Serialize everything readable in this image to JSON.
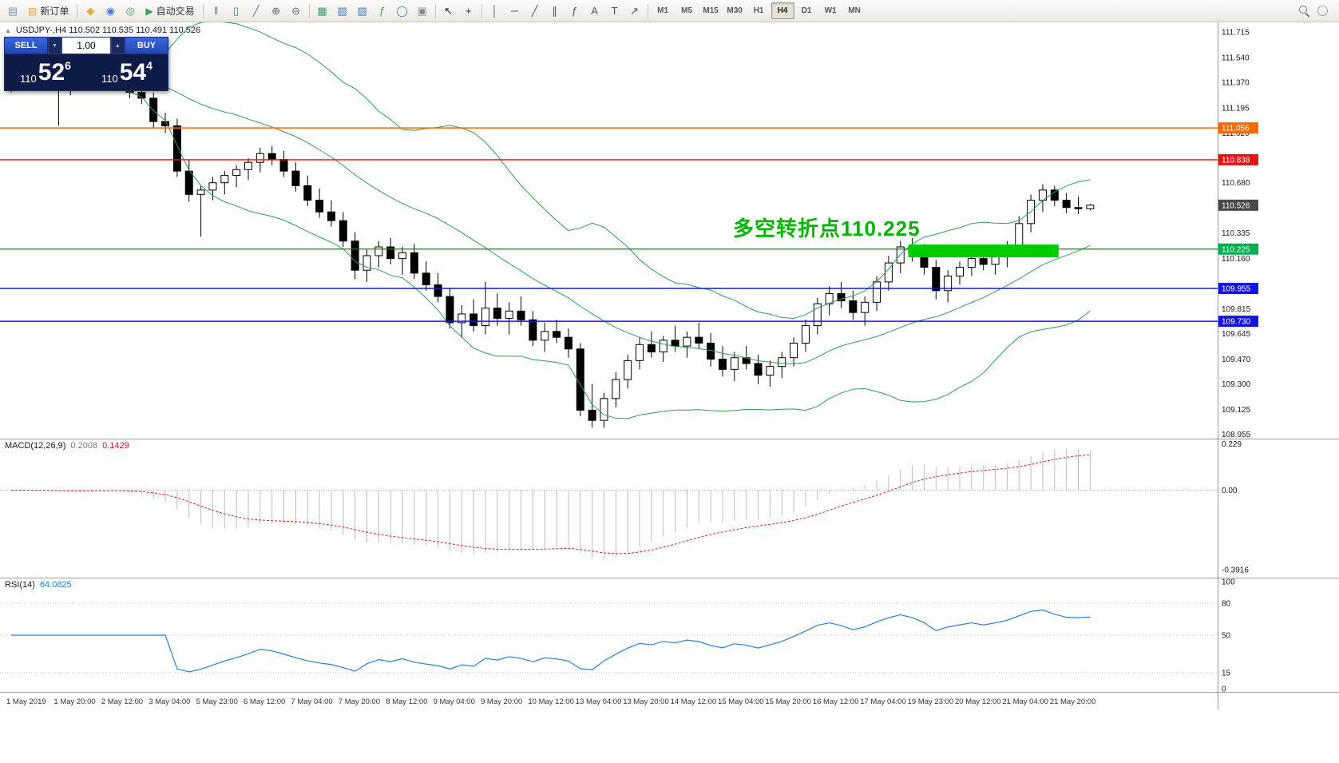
{
  "colors": {
    "bollinger": "#2f9e4f",
    "macd_hist": "#bcbcbc",
    "macd_signal": "#e02020",
    "rsi_line": "#2a7fdd",
    "annotation_green": "#00b400",
    "highlight_green": "#00cc00"
  },
  "toolbar": {
    "items": [
      {
        "t": "icon",
        "name": "chart-window-icon",
        "g": "▤",
        "c": "#8a97a8"
      },
      {
        "t": "btn",
        "name": "new-order-button",
        "g": "▤",
        "c": "#d8aa3c",
        "label": "新订单"
      },
      {
        "t": "sep"
      },
      {
        "t": "icon",
        "name": "market-watch-icon",
        "g": "◆",
        "c": "#e0b040"
      },
      {
        "t": "icon",
        "name": "data-window-icon",
        "g": "◉",
        "c": "#4a7ac8"
      },
      {
        "t": "icon",
        "name": "navigator-icon",
        "g": "◎",
        "c": "#3f9e5f"
      },
      {
        "t": "btn",
        "name": "auto-trading-button",
        "g": "▶",
        "c": "#2ea44f",
        "label": "自动交易"
      },
      {
        "t": "sep"
      },
      {
        "t": "icon",
        "name": "bar-chart-icon",
        "g": "‖",
        "c": "#4a7ac8"
      },
      {
        "t": "icon",
        "name": "candlestick-chart-icon",
        "g": "▯",
        "c": "#4a7ac8"
      },
      {
        "t": "icon",
        "name": "line-chart-icon",
        "g": "╱",
        "c": "#4a7ac8"
      },
      {
        "t": "icon",
        "name": "zoom-in-icon",
        "g": "⊕",
        "c": "#5a6a7a"
      },
      {
        "t": "icon",
        "name": "zoom-out-icon",
        "g": "⊖",
        "c": "#5a6a7a"
      },
      {
        "t": "sep"
      },
      {
        "t": "icon",
        "name": "tile-windows-icon",
        "g": "▦",
        "c": "#3f9e5f"
      },
      {
        "t": "icon",
        "name": "cascade-windows-icon",
        "g": "▧",
        "c": "#4a7ac8"
      },
      {
        "t": "icon",
        "name": "new-chart-icon",
        "g": "▨",
        "c": "#4a7ac8"
      },
      {
        "t": "icon",
        "name": "indicators-icon",
        "g": "ƒ",
        "c": "#2ea44f"
      },
      {
        "t": "icon",
        "name": "period-icon",
        "g": "◯",
        "c": "#4a7ac8"
      },
      {
        "t": "icon",
        "name": "template-icon",
        "g": "▣",
        "c": "#8a8a8a"
      },
      {
        "t": "sep"
      },
      {
        "t": "icon",
        "name": "cursor-icon",
        "g": "↖",
        "c": "#222222"
      },
      {
        "t": "icon",
        "name": "crosshair-icon",
        "g": "+",
        "c": "#222222"
      },
      {
        "t": "sep"
      },
      {
        "t": "icon",
        "name": "vertical-line-icon",
        "g": "│",
        "c": "#555555"
      },
      {
        "t": "icon",
        "name": "horizontal-line-icon",
        "g": "─",
        "c": "#555555"
      },
      {
        "t": "icon",
        "name": "trendline-icon",
        "g": "╱",
        "c": "#555555"
      },
      {
        "t": "icon",
        "name": "channel-icon",
        "g": "∥",
        "c": "#555555"
      },
      {
        "t": "icon",
        "name": "fibonacci-icon",
        "g": "ƒ",
        "c": "#555555"
      },
      {
        "t": "icon",
        "name": "text-icon",
        "g": "A",
        "c": "#555555"
      },
      {
        "t": "icon",
        "name": "label-icon",
        "g": "T",
        "c": "#555555"
      },
      {
        "t": "icon",
        "name": "arrows-icon",
        "g": "↗",
        "c": "#555555"
      },
      {
        "t": "sep"
      },
      {
        "t": "tf"
      }
    ],
    "timeframes": {
      "options": [
        "M1",
        "M5",
        "M15",
        "M30",
        "H1",
        "H4",
        "D1",
        "W1",
        "MN"
      ],
      "active": "H4"
    },
    "right_items": [
      {
        "name": "search-icon",
        "shape": "magnifier"
      },
      {
        "name": "help-icon",
        "shape": "circle"
      }
    ]
  },
  "trade_panel": {
    "sell_label": "SELL",
    "buy_label": "BUY",
    "volume": "1.00",
    "spin_down_glyph": "▼",
    "spin_up_glyph": "▲",
    "sell_price": {
      "prefix": "110",
      "big": "52",
      "sup": "6"
    },
    "buy_price": {
      "prefix": "110",
      "big": "54",
      "sup": "4"
    }
  },
  "chart": {
    "collapse_glyph": "▲",
    "symbol_info": "USDJPY-,H4  110.502 110.535 110.491 110.526",
    "annotation": "多空转折点110.225",
    "y_ticks": [
      "111.715",
      "111.540",
      "111.370",
      "111.195",
      "111.020",
      "110.680",
      "110.335",
      "110.160",
      "109.815",
      "109.645",
      "109.470",
      "109.300",
      "109.125",
      "108.955"
    ],
    "price_tags": [
      {
        "label": "111.056",
        "price": 111.056,
        "color": "#ff6a00"
      },
      {
        "label": "110.838",
        "price": 110.838,
        "color": "#e81212"
      },
      {
        "label": "110.526",
        "price": 110.526,
        "color": "#4a4a4a"
      },
      {
        "label": "110.225",
        "price": 110.225,
        "color": "#00b050"
      },
      {
        "label": "109.955",
        "price": 109.955,
        "color": "#1414e0"
      },
      {
        "label": "109.730",
        "price": 109.73,
        "color": "#1414e0"
      }
    ],
    "hlines": [
      {
        "price": 111.056,
        "color": "#ff6a00",
        "width": 1.4
      },
      {
        "price": 110.838,
        "color": "#e81212",
        "width": 1.4
      },
      {
        "price": 110.225,
        "color": "#009000",
        "width": 1.2
      },
      {
        "price": 109.955,
        "color": "#1414e0",
        "width": 1.5
      },
      {
        "price": 109.73,
        "color": "#1414e0",
        "width": 1.5
      }
    ],
    "highlight": {
      "from": 76,
      "to": 88,
      "p_min": 110.168,
      "p_max": 110.256,
      "color": "#00cc00"
    }
  },
  "macd": {
    "label": "MACD(12,26,9)",
    "value_main": "0.2008",
    "value_signal": "0.1429",
    "fast": 12,
    "slow": 26,
    "signal": 9,
    "ticks": [
      {
        "label": "0.229",
        "value": 0.229
      },
      {
        "label": "0.00",
        "value": 0
      },
      {
        "label": "-0.3916",
        "value": -0.3916
      }
    ]
  },
  "rsi": {
    "label": "RSI(14)",
    "value": "64.0825",
    "period": 14,
    "levels": [
      80,
      50,
      15
    ],
    "ticks": [
      {
        "label": "100",
        "value": 100
      },
      {
        "label": "80",
        "value": 80
      },
      {
        "label": "50",
        "value": 50
      },
      {
        "label": "15",
        "value": 15
      },
      {
        "label": "0",
        "value": 0
      }
    ]
  },
  "chart_data": {
    "type": "candlestick",
    "symbol": "USDJPY-",
    "timeframe": "H4",
    "ohlc_format": "open,high,low,close",
    "ohlc": [
      [
        111.36,
        111.44,
        111.3,
        111.41
      ],
      [
        111.41,
        111.47,
        111.35,
        111.38
      ],
      [
        111.38,
        111.45,
        111.32,
        111.43
      ],
      [
        111.43,
        111.46,
        111.36,
        111.39
      ],
      [
        111.39,
        111.42,
        111.07,
        111.33
      ],
      [
        111.33,
        111.43,
        111.28,
        111.4
      ],
      [
        111.4,
        111.48,
        111.34,
        111.45
      ],
      [
        111.45,
        111.5,
        111.38,
        111.42
      ],
      [
        111.42,
        111.47,
        111.35,
        111.44
      ],
      [
        111.44,
        111.46,
        111.32,
        111.36
      ],
      [
        111.36,
        111.41,
        111.26,
        111.3
      ],
      [
        111.3,
        111.36,
        111.22,
        111.26
      ],
      [
        111.26,
        111.3,
        111.05,
        111.1
      ],
      [
        111.1,
        111.16,
        111.02,
        111.07
      ],
      [
        111.07,
        111.12,
        110.72,
        110.76
      ],
      [
        110.76,
        110.84,
        110.55,
        110.6
      ],
      [
        110.6,
        110.66,
        110.31,
        110.63
      ],
      [
        110.63,
        110.72,
        110.56,
        110.68
      ],
      [
        110.68,
        110.76,
        110.6,
        110.73
      ],
      [
        110.73,
        110.8,
        110.65,
        110.77
      ],
      [
        110.77,
        110.85,
        110.7,
        110.82
      ],
      [
        110.82,
        110.92,
        110.75,
        110.88
      ],
      [
        110.88,
        110.93,
        110.8,
        110.84
      ],
      [
        110.84,
        110.9,
        110.72,
        110.76
      ],
      [
        110.76,
        110.82,
        110.62,
        110.66
      ],
      [
        110.66,
        110.73,
        110.52,
        110.56
      ],
      [
        110.56,
        110.64,
        110.44,
        110.48
      ],
      [
        110.48,
        110.56,
        110.38,
        110.42
      ],
      [
        110.42,
        110.48,
        110.24,
        110.28
      ],
      [
        110.28,
        110.34,
        110.02,
        110.08
      ],
      [
        110.08,
        110.22,
        110.0,
        110.18
      ],
      [
        110.18,
        110.28,
        110.1,
        110.24
      ],
      [
        110.24,
        110.3,
        110.12,
        110.16
      ],
      [
        110.16,
        110.24,
        110.05,
        110.2
      ],
      [
        110.2,
        110.26,
        110.02,
        110.06
      ],
      [
        110.06,
        110.14,
        109.94,
        109.98
      ],
      [
        109.98,
        110.06,
        109.86,
        109.9
      ],
      [
        109.9,
        109.96,
        109.68,
        109.72
      ],
      [
        109.72,
        109.84,
        109.62,
        109.78
      ],
      [
        109.78,
        109.88,
        109.66,
        109.7
      ],
      [
        109.7,
        110.0,
        109.64,
        109.82
      ],
      [
        109.82,
        109.92,
        109.7,
        109.75
      ],
      [
        109.75,
        109.86,
        109.64,
        109.8
      ],
      [
        109.8,
        109.9,
        109.7,
        109.74
      ],
      [
        109.74,
        109.8,
        109.56,
        109.6
      ],
      [
        109.6,
        109.72,
        109.52,
        109.66
      ],
      [
        109.66,
        109.74,
        109.58,
        109.62
      ],
      [
        109.62,
        109.68,
        109.48,
        109.54
      ],
      [
        109.54,
        109.58,
        109.08,
        109.12
      ],
      [
        109.12,
        109.3,
        109.0,
        109.05
      ],
      [
        109.05,
        109.24,
        109.0,
        109.2
      ],
      [
        109.2,
        109.38,
        109.14,
        109.33
      ],
      [
        109.33,
        109.5,
        109.27,
        109.46
      ],
      [
        109.46,
        109.62,
        109.4,
        109.57
      ],
      [
        109.57,
        109.66,
        109.48,
        109.52
      ],
      [
        109.52,
        109.63,
        109.45,
        109.6
      ],
      [
        109.6,
        109.7,
        109.52,
        109.56
      ],
      [
        109.56,
        109.66,
        109.48,
        109.62
      ],
      [
        109.62,
        109.72,
        109.54,
        109.58
      ],
      [
        109.58,
        109.65,
        109.42,
        109.47
      ],
      [
        109.47,
        109.56,
        109.35,
        109.4
      ],
      [
        109.4,
        109.52,
        109.32,
        109.48
      ],
      [
        109.48,
        109.56,
        109.4,
        109.44
      ],
      [
        109.44,
        109.5,
        109.3,
        109.36
      ],
      [
        109.36,
        109.46,
        109.28,
        109.42
      ],
      [
        109.42,
        109.52,
        109.34,
        109.48
      ],
      [
        109.48,
        109.62,
        109.42,
        109.58
      ],
      [
        109.58,
        109.74,
        109.52,
        109.7
      ],
      [
        109.7,
        109.89,
        109.64,
        109.85
      ],
      [
        109.85,
        109.97,
        109.77,
        109.92
      ],
      [
        109.92,
        110.0,
        109.82,
        109.87
      ],
      [
        109.87,
        109.94,
        109.74,
        109.79
      ],
      [
        109.79,
        109.9,
        109.7,
        109.86
      ],
      [
        109.86,
        110.04,
        109.8,
        110.0
      ],
      [
        110.0,
        110.18,
        109.94,
        110.13
      ],
      [
        110.13,
        110.28,
        110.06,
        110.24
      ],
      [
        110.24,
        110.3,
        110.14,
        110.19
      ],
      [
        110.19,
        110.26,
        110.05,
        110.1
      ],
      [
        110.1,
        110.15,
        109.88,
        109.94
      ],
      [
        109.94,
        110.08,
        109.86,
        110.04
      ],
      [
        110.04,
        110.14,
        109.98,
        110.1
      ],
      [
        110.1,
        110.2,
        110.04,
        110.16
      ],
      [
        110.16,
        110.24,
        110.08,
        110.12
      ],
      [
        110.12,
        110.22,
        110.05,
        110.18
      ],
      [
        110.18,
        110.28,
        110.1,
        110.25
      ],
      [
        110.25,
        110.45,
        110.18,
        110.4
      ],
      [
        110.4,
        110.6,
        110.34,
        110.56
      ],
      [
        110.56,
        110.67,
        110.48,
        110.63
      ],
      [
        110.63,
        110.66,
        110.52,
        110.56
      ],
      [
        110.56,
        110.61,
        110.47,
        110.51
      ],
      [
        110.51,
        110.585,
        110.465,
        110.502
      ],
      [
        110.502,
        110.535,
        110.491,
        110.526
      ]
    ],
    "x_labels": [
      "1 May 2019",
      "1 May 20:00",
      "2 May 12:00",
      "3 May 04:00",
      "5 May 23:00",
      "6 May 12:00",
      "7 May 04:00",
      "7 May 20:00",
      "8 May 12:00",
      "9 May 04:00",
      "9 May 20:00",
      "10 May 12:00",
      "13 May 04:00",
      "13 May 20:00",
      "14 May 12:00",
      "15 May 04:00",
      "15 May 20:00",
      "16 May 12:00",
      "17 May 04:00",
      "19 May 23:00",
      "20 May 12:00",
      "21 May 04:00",
      "21 May 20:00"
    ]
  }
}
